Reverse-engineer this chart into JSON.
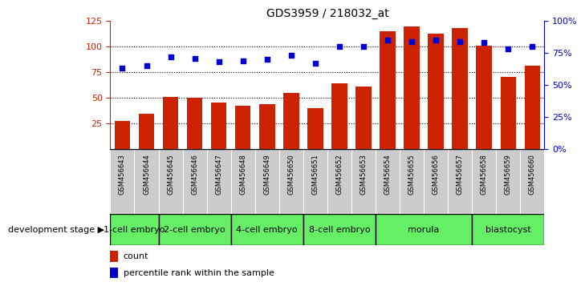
{
  "title": "GDS3959 / 218032_at",
  "samples": [
    "GSM456643",
    "GSM456644",
    "GSM456645",
    "GSM456646",
    "GSM456647",
    "GSM456648",
    "GSM456649",
    "GSM456650",
    "GSM456651",
    "GSM456652",
    "GSM456653",
    "GSM456654",
    "GSM456655",
    "GSM456656",
    "GSM456657",
    "GSM456658",
    "GSM456659",
    "GSM456660"
  ],
  "counts": [
    27,
    34,
    51,
    50,
    45,
    42,
    44,
    55,
    40,
    64,
    61,
    115,
    120,
    113,
    118,
    101,
    70,
    81
  ],
  "percentile_ranks": [
    63,
    65,
    72,
    71,
    68,
    69,
    70,
    73,
    67,
    80,
    80,
    85,
    84,
    85,
    84,
    83,
    78,
    80
  ],
  "stages": [
    {
      "label": "1-cell embryo",
      "start": 0,
      "end": 2
    },
    {
      "label": "2-cell embryo",
      "start": 2,
      "end": 5
    },
    {
      "label": "4-cell embryo",
      "start": 5,
      "end": 8
    },
    {
      "label": "8-cell embryo",
      "start": 8,
      "end": 11
    },
    {
      "label": "morula",
      "start": 11,
      "end": 15
    },
    {
      "label": "blastocyst",
      "start": 15,
      "end": 18
    }
  ],
  "bar_color": "#CC2200",
  "dot_color": "#0000CC",
  "ylim_left": [
    0,
    125
  ],
  "ylim_right": [
    0,
    100
  ],
  "yticks_left": [
    25,
    50,
    75,
    100,
    125
  ],
  "yticks_right": [
    0,
    25,
    50,
    75,
    100
  ],
  "ytick_right_labels": [
    "0%",
    "25%",
    "50%",
    "75%",
    "100%"
  ],
  "stage_bg_color": "#66EE66",
  "sample_bg_color": "#CCCCCC",
  "stage_border_color": "#000000",
  "legend_count_color": "#CC2200",
  "legend_pct_color": "#0000CC",
  "dev_stage_label": "development stage",
  "legend_count_label": "count",
  "legend_pct_label": "percentile rank within the sample"
}
